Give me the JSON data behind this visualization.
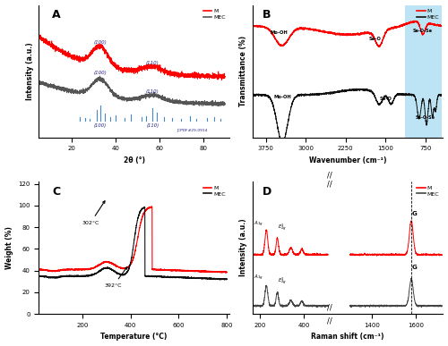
{
  "title_A": "A",
  "title_B": "B",
  "title_C": "C",
  "title_D": "D",
  "legend_M": "M",
  "legend_MEC": "MEC",
  "color_M": "#ff0000",
  "color_MEC_A": "#555555",
  "color_MEC_B": "#111111",
  "color_MEC_C": "#111111",
  "color_MEC_D": "#444444",
  "color_blue_stem": "#4488cc",
  "bg_highlight": "#87CEEB",
  "jcpdf_label": "JCPDF#29-0914",
  "xrd_xlabel": "2θ (°)",
  "xrd_ylabel": "Intensity (a.u.)",
  "ftir_xlabel": "Wavenumber (cm⁻¹)",
  "ftir_ylabel": "Transmittance (%)",
  "tga_xlabel": "Temperature (°C)",
  "tga_ylabel": "Weight (%)",
  "raman_xlabel": "Raman shift (cm⁻¹)",
  "raman_ylabel": "Intensity (a.u.)",
  "tga_annot1": "302°C",
  "tga_annot2": "392°C"
}
